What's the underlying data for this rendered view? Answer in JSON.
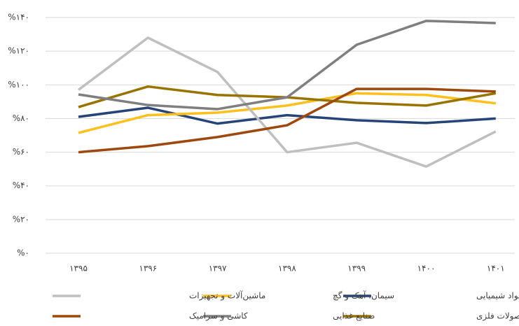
{
  "chart_data": {
    "type": "line",
    "categories": [
      "۱۳۹۵",
      "۱۳۹۶",
      "۱۳۹۷",
      "۱۳۹۸",
      "۱۳۹۹",
      "۱۴۰۰",
      "۱۴۰۱"
    ],
    "series": [
      {
        "name": "مواد شیمیایی",
        "color": "#264478",
        "values": [
          81,
          86.4,
          77,
          82,
          79,
          77.3,
          80
        ]
      },
      {
        "name": "سیمان، آهک و گچ",
        "color": "#fdc01e",
        "values": [
          71.5,
          82,
          83.5,
          87.7,
          95,
          94,
          89
        ]
      },
      {
        "name": "ماشین‌آلات و تجهیزات",
        "color": "#bfbfbf",
        "values": [
          97,
          128,
          107.6,
          60,
          65.6,
          51.5,
          72.3
        ]
      },
      {
        "name": "محصولات فلزی",
        "color": "#997300",
        "values": [
          86.8,
          99,
          94,
          92.6,
          89.3,
          87.7,
          95
        ]
      },
      {
        "name": "صنایع غذایی",
        "color": "#7f7f7f",
        "values": [
          94.3,
          88,
          85.6,
          92.6,
          123.8,
          138,
          136.7
        ]
      },
      {
        "name": "کاشی و سرامیک",
        "color": "#9e480e",
        "values": [
          60,
          63.6,
          69,
          76,
          97.6,
          97.6,
          96
        ]
      }
    ],
    "ylim": [
      0,
      140
    ],
    "yticks": [
      {
        "value": 0,
        "label": "%۰"
      },
      {
        "value": 20,
        "label": "%۲۰"
      },
      {
        "value": 40,
        "label": "%۴۰"
      },
      {
        "value": 60,
        "label": "%۶۰"
      },
      {
        "value": 80,
        "label": "%۸۰"
      },
      {
        "value": 100,
        "label": "%۱۰۰"
      },
      {
        "value": 120,
        "label": "%۱۲۰"
      },
      {
        "value": 140,
        "label": "%۱۴۰"
      }
    ],
    "grid": true,
    "legend": "bottom"
  }
}
